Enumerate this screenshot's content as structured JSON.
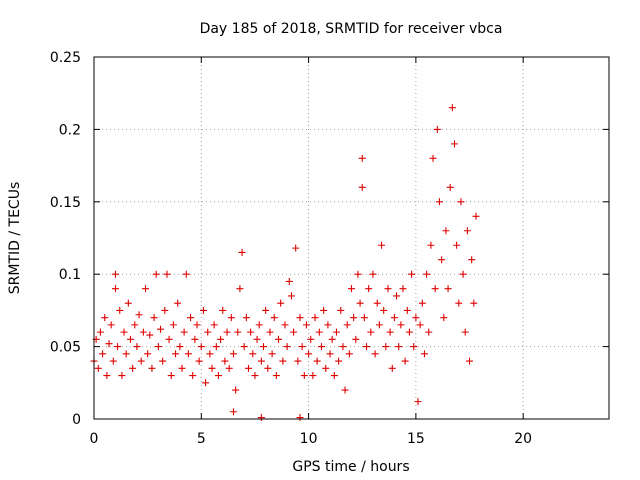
{
  "chart_data": {
    "type": "scatter",
    "title": "Day 185 of 2018, SRMTID for receiver vbca",
    "xlabel": "GPS time / hours",
    "ylabel": "SRMTID / TECUs",
    "xlim": [
      0,
      24
    ],
    "ylim": [
      0,
      0.25
    ],
    "x_ticks": [
      0,
      5,
      10,
      15,
      20
    ],
    "x_tick_labels": [
      "0",
      "5",
      "10",
      "15",
      "20"
    ],
    "y_ticks": [
      0,
      0.05,
      0.1,
      0.15,
      0.2,
      0.25
    ],
    "y_tick_labels": [
      "0",
      "0.05",
      "0.1",
      "0.15",
      "0.2",
      "0.25"
    ],
    "grid": true,
    "marker": "plus",
    "color": "#e00000",
    "series": [
      {
        "name": "vbca",
        "points": [
          [
            0.0,
            0.04
          ],
          [
            0.1,
            0.055
          ],
          [
            0.2,
            0.035
          ],
          [
            0.3,
            0.06
          ],
          [
            0.4,
            0.045
          ],
          [
            0.5,
            0.07
          ],
          [
            0.6,
            0.03
          ],
          [
            0.7,
            0.052
          ],
          [
            0.8,
            0.065
          ],
          [
            0.9,
            0.04
          ],
          [
            1.0,
            0.1
          ],
          [
            1.0,
            0.09
          ],
          [
            1.1,
            0.05
          ],
          [
            1.2,
            0.075
          ],
          [
            1.3,
            0.03
          ],
          [
            1.4,
            0.06
          ],
          [
            1.5,
            0.045
          ],
          [
            1.6,
            0.08
          ],
          [
            1.7,
            0.055
          ],
          [
            1.8,
            0.035
          ],
          [
            1.9,
            0.065
          ],
          [
            2.0,
            0.05
          ],
          [
            2.1,
            0.072
          ],
          [
            2.2,
            0.04
          ],
          [
            2.3,
            0.06
          ],
          [
            2.4,
            0.09
          ],
          [
            2.5,
            0.045
          ],
          [
            2.6,
            0.058
          ],
          [
            2.7,
            0.035
          ],
          [
            2.8,
            0.07
          ],
          [
            2.9,
            0.1
          ],
          [
            3.0,
            0.05
          ],
          [
            3.1,
            0.062
          ],
          [
            3.2,
            0.04
          ],
          [
            3.3,
            0.075
          ],
          [
            3.4,
            0.1
          ],
          [
            3.5,
            0.055
          ],
          [
            3.6,
            0.03
          ],
          [
            3.7,
            0.065
          ],
          [
            3.8,
            0.045
          ],
          [
            3.9,
            0.08
          ],
          [
            4.0,
            0.05
          ],
          [
            4.1,
            0.035
          ],
          [
            4.2,
            0.06
          ],
          [
            4.3,
            0.1
          ],
          [
            4.4,
            0.045
          ],
          [
            4.5,
            0.07
          ],
          [
            4.6,
            0.03
          ],
          [
            4.7,
            0.055
          ],
          [
            4.8,
            0.065
          ],
          [
            4.9,
            0.04
          ],
          [
            5.0,
            0.05
          ],
          [
            5.1,
            0.075
          ],
          [
            5.2,
            0.025
          ],
          [
            5.3,
            0.06
          ],
          [
            5.4,
            0.045
          ],
          [
            5.5,
            0.035
          ],
          [
            5.6,
            0.065
          ],
          [
            5.7,
            0.05
          ],
          [
            5.8,
            0.03
          ],
          [
            5.9,
            0.055
          ],
          [
            6.0,
            0.075
          ],
          [
            6.1,
            0.04
          ],
          [
            6.2,
            0.06
          ],
          [
            6.3,
            0.035
          ],
          [
            6.4,
            0.07
          ],
          [
            6.5,
            0.045
          ],
          [
            6.6,
            0.02
          ],
          [
            6.7,
            0.06
          ],
          [
            6.8,
            0.09
          ],
          [
            6.9,
            0.115
          ],
          [
            7.0,
            0.05
          ],
          [
            7.1,
            0.07
          ],
          [
            7.2,
            0.035
          ],
          [
            7.3,
            0.06
          ],
          [
            7.4,
            0.045
          ],
          [
            7.5,
            0.03
          ],
          [
            7.6,
            0.055
          ],
          [
            7.7,
            0.065
          ],
          [
            7.8,
            0.04
          ],
          [
            7.9,
            0.05
          ],
          [
            8.0,
            0.075
          ],
          [
            8.1,
            0.035
          ],
          [
            8.2,
            0.06
          ],
          [
            8.3,
            0.045
          ],
          [
            8.4,
            0.07
          ],
          [
            8.5,
            0.03
          ],
          [
            8.6,
            0.055
          ],
          [
            8.7,
            0.08
          ],
          [
            8.8,
            0.04
          ],
          [
            8.9,
            0.065
          ],
          [
            9.0,
            0.05
          ],
          [
            9.1,
            0.095
          ],
          [
            9.2,
            0.085
          ],
          [
            9.3,
            0.06
          ],
          [
            9.4,
            0.118
          ],
          [
            9.5,
            0.04
          ],
          [
            9.6,
            0.07
          ],
          [
            9.7,
            0.05
          ],
          [
            9.8,
            0.03
          ],
          [
            9.9,
            0.065
          ],
          [
            10.0,
            0.045
          ],
          [
            10.1,
            0.055
          ],
          [
            10.2,
            0.03
          ],
          [
            10.3,
            0.07
          ],
          [
            10.4,
            0.04
          ],
          [
            10.5,
            0.06
          ],
          [
            10.6,
            0.05
          ],
          [
            10.7,
            0.075
          ],
          [
            10.8,
            0.035
          ],
          [
            10.9,
            0.065
          ],
          [
            11.0,
            0.045
          ],
          [
            11.1,
            0.055
          ],
          [
            11.2,
            0.03
          ],
          [
            11.3,
            0.06
          ],
          [
            11.4,
            0.04
          ],
          [
            11.5,
            0.075
          ],
          [
            11.6,
            0.05
          ],
          [
            11.7,
            0.02
          ],
          [
            11.8,
            0.065
          ],
          [
            11.9,
            0.045
          ],
          [
            12.0,
            0.09
          ],
          [
            12.1,
            0.07
          ],
          [
            12.2,
            0.055
          ],
          [
            12.3,
            0.1
          ],
          [
            12.4,
            0.08
          ],
          [
            12.5,
            0.16
          ],
          [
            12.5,
            0.18
          ],
          [
            12.6,
            0.07
          ],
          [
            12.7,
            0.05
          ],
          [
            12.8,
            0.09
          ],
          [
            12.9,
            0.06
          ],
          [
            13.0,
            0.1
          ],
          [
            13.1,
            0.045
          ],
          [
            13.2,
            0.08
          ],
          [
            13.3,
            0.065
          ],
          [
            13.4,
            0.12
          ],
          [
            13.5,
            0.075
          ],
          [
            13.6,
            0.05
          ],
          [
            13.7,
            0.09
          ],
          [
            13.8,
            0.06
          ],
          [
            13.9,
            0.035
          ],
          [
            14.0,
            0.07
          ],
          [
            14.1,
            0.085
          ],
          [
            14.2,
            0.05
          ],
          [
            14.3,
            0.065
          ],
          [
            14.4,
            0.09
          ],
          [
            14.5,
            0.04
          ],
          [
            14.6,
            0.075
          ],
          [
            14.7,
            0.06
          ],
          [
            14.8,
            0.1
          ],
          [
            14.9,
            0.05
          ],
          [
            15.0,
            0.07
          ],
          [
            15.1,
            0.012
          ],
          [
            15.2,
            0.065
          ],
          [
            15.3,
            0.08
          ],
          [
            15.4,
            0.045
          ],
          [
            15.5,
            0.1
          ],
          [
            15.6,
            0.06
          ],
          [
            15.7,
            0.12
          ],
          [
            15.8,
            0.18
          ],
          [
            15.9,
            0.09
          ],
          [
            16.0,
            0.2
          ],
          [
            16.1,
            0.15
          ],
          [
            16.2,
            0.11
          ],
          [
            16.3,
            0.07
          ],
          [
            16.4,
            0.13
          ],
          [
            16.5,
            0.09
          ],
          [
            16.6,
            0.16
          ],
          [
            16.7,
            0.215
          ],
          [
            16.8,
            0.19
          ],
          [
            16.9,
            0.12
          ],
          [
            17.0,
            0.08
          ],
          [
            17.1,
            0.15
          ],
          [
            17.2,
            0.1
          ],
          [
            17.3,
            0.06
          ],
          [
            17.4,
            0.13
          ],
          [
            17.5,
            0.04
          ],
          [
            17.6,
            0.11
          ],
          [
            17.7,
            0.08
          ],
          [
            17.8,
            0.14
          ],
          [
            6.5,
            0.005
          ],
          [
            7.8,
            0.001
          ],
          [
            9.6,
            0.001
          ]
        ]
      }
    ]
  }
}
